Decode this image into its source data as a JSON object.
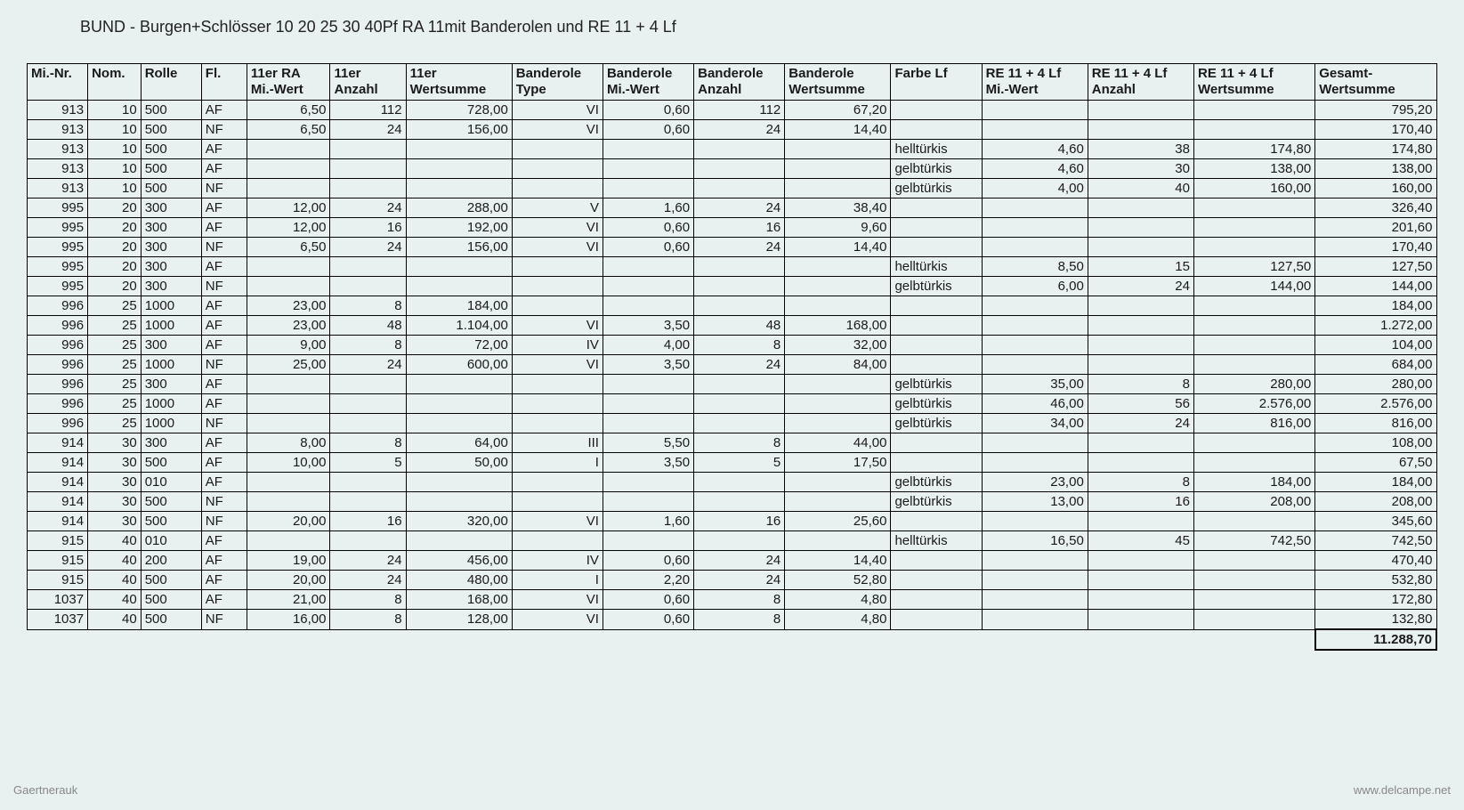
{
  "title": "BUND - Burgen+Schlösser 10 20 25 30 40Pf  RA 11mit Banderolen und RE 11 + 4 Lf",
  "columns": [
    "Mi.-Nr.",
    "Nom.",
    "Rolle",
    "Fl.",
    "11er RA\nMi.-Wert",
    "11er\nAnzahl",
    "11er\nWertsumme",
    "Banderole\nType",
    "Banderole\nMi.-Wert",
    "Banderole\nAnzahl",
    "Banderole\nWertsumme",
    "Farbe Lf",
    "RE 11 + 4 Lf\nMi.-Wert",
    "RE 11 + 4 Lf\nAnzahl",
    "RE 11 + 4 Lf\nWertsumme",
    "Gesamt-\nWertsumme"
  ],
  "column_align": [
    "right",
    "right",
    "left",
    "left",
    "right",
    "right",
    "right",
    "right",
    "right",
    "right",
    "right",
    "left",
    "right",
    "right",
    "right",
    "right"
  ],
  "column_widths_pct": [
    4,
    3.5,
    4,
    3,
    5.5,
    5,
    7,
    6,
    6,
    6,
    7,
    6,
    7,
    7,
    8,
    8
  ],
  "rows": [
    [
      "913",
      "10",
      "500",
      "AF",
      "6,50",
      "112",
      "728,00",
      "VI",
      "0,60",
      "112",
      "67,20",
      "",
      "",
      "",
      "",
      "795,20"
    ],
    [
      "913",
      "10",
      "500",
      "NF",
      "6,50",
      "24",
      "156,00",
      "VI",
      "0,60",
      "24",
      "14,40",
      "",
      "",
      "",
      "",
      "170,40"
    ],
    [
      "913",
      "10",
      "500",
      "AF",
      "",
      "",
      "",
      "",
      "",
      "",
      "",
      "helltürkis",
      "4,60",
      "38",
      "174,80",
      "174,80"
    ],
    [
      "913",
      "10",
      "500",
      "AF",
      "",
      "",
      "",
      "",
      "",
      "",
      "",
      "gelbtürkis",
      "4,60",
      "30",
      "138,00",
      "138,00"
    ],
    [
      "913",
      "10",
      "500",
      "NF",
      "",
      "",
      "",
      "",
      "",
      "",
      "",
      "gelbtürkis",
      "4,00",
      "40",
      "160,00",
      "160,00"
    ],
    [
      "995",
      "20",
      "300",
      "AF",
      "12,00",
      "24",
      "288,00",
      "V",
      "1,60",
      "24",
      "38,40",
      "",
      "",
      "",
      "",
      "326,40"
    ],
    [
      "995",
      "20",
      "300",
      "AF",
      "12,00",
      "16",
      "192,00",
      "VI",
      "0,60",
      "16",
      "9,60",
      "",
      "",
      "",
      "",
      "201,60"
    ],
    [
      "995",
      "20",
      "300",
      "NF",
      "6,50",
      "24",
      "156,00",
      "VI",
      "0,60",
      "24",
      "14,40",
      "",
      "",
      "",
      "",
      "170,40"
    ],
    [
      "995",
      "20",
      "300",
      "AF",
      "",
      "",
      "",
      "",
      "",
      "",
      "",
      "helltürkis",
      "8,50",
      "15",
      "127,50",
      "127,50"
    ],
    [
      "995",
      "20",
      "300",
      "NF",
      "",
      "",
      "",
      "",
      "",
      "",
      "",
      "gelbtürkis",
      "6,00",
      "24",
      "144,00",
      "144,00"
    ],
    [
      "996",
      "25",
      "1000",
      "AF",
      "23,00",
      "8",
      "184,00",
      "",
      "",
      "",
      "",
      "",
      "",
      "",
      "",
      "184,00"
    ],
    [
      "996",
      "25",
      "1000",
      "AF",
      "23,00",
      "48",
      "1.104,00",
      "VI",
      "3,50",
      "48",
      "168,00",
      "",
      "",
      "",
      "",
      "1.272,00"
    ],
    [
      "996",
      "25",
      "300",
      "AF",
      "9,00",
      "8",
      "72,00",
      "IV",
      "4,00",
      "8",
      "32,00",
      "",
      "",
      "",
      "",
      "104,00"
    ],
    [
      "996",
      "25",
      "1000",
      "NF",
      "25,00",
      "24",
      "600,00",
      "VI",
      "3,50",
      "24",
      "84,00",
      "",
      "",
      "",
      "",
      "684,00"
    ],
    [
      "996",
      "25",
      "300",
      "AF",
      "",
      "",
      "",
      "",
      "",
      "",
      "",
      "gelbtürkis",
      "35,00",
      "8",
      "280,00",
      "280,00"
    ],
    [
      "996",
      "25",
      "1000",
      "AF",
      "",
      "",
      "",
      "",
      "",
      "",
      "",
      "gelbtürkis",
      "46,00",
      "56",
      "2.576,00",
      "2.576,00"
    ],
    [
      "996",
      "25",
      "1000",
      "NF",
      "",
      "",
      "",
      "",
      "",
      "",
      "",
      "gelbtürkis",
      "34,00",
      "24",
      "816,00",
      "816,00"
    ],
    [
      "914",
      "30",
      "300",
      "AF",
      "8,00",
      "8",
      "64,00",
      "III",
      "5,50",
      "8",
      "44,00",
      "",
      "",
      "",
      "",
      "108,00"
    ],
    [
      "914",
      "30",
      "500",
      "AF",
      "10,00",
      "5",
      "50,00",
      "I",
      "3,50",
      "5",
      "17,50",
      "",
      "",
      "",
      "",
      "67,50"
    ],
    [
      "914",
      "30",
      "010",
      "AF",
      "",
      "",
      "",
      "",
      "",
      "",
      "",
      "gelbtürkis",
      "23,00",
      "8",
      "184,00",
      "184,00"
    ],
    [
      "914",
      "30",
      "500",
      "NF",
      "",
      "",
      "",
      "",
      "",
      "",
      "",
      "gelbtürkis",
      "13,00",
      "16",
      "208,00",
      "208,00"
    ],
    [
      "914",
      "30",
      "500",
      "NF",
      "20,00",
      "16",
      "320,00",
      "VI",
      "1,60",
      "16",
      "25,60",
      "",
      "",
      "",
      "",
      "345,60"
    ],
    [
      "915",
      "40",
      "010",
      "AF",
      "",
      "",
      "",
      "",
      "",
      "",
      "",
      "helltürkis",
      "16,50",
      "45",
      "742,50",
      "742,50"
    ],
    [
      "915",
      "40",
      "200",
      "AF",
      "19,00",
      "24",
      "456,00",
      "IV",
      "0,60",
      "24",
      "14,40",
      "",
      "",
      "",
      "",
      "470,40"
    ],
    [
      "915",
      "40",
      "500",
      "AF",
      "20,00",
      "24",
      "480,00",
      "I",
      "2,20",
      "24",
      "52,80",
      "",
      "",
      "",
      "",
      "532,80"
    ],
    [
      "1037",
      "40",
      "500",
      "AF",
      "21,00",
      "8",
      "168,00",
      "VI",
      "0,60",
      "8",
      "4,80",
      "",
      "",
      "",
      "",
      "172,80"
    ],
    [
      "1037",
      "40",
      "500",
      "NF",
      "16,00",
      "8",
      "128,00",
      "VI",
      "0,60",
      "8",
      "4,80",
      "",
      "",
      "",
      "",
      "132,80"
    ]
  ],
  "total": "11.288,70",
  "watermarks": {
    "left": "Gaertnerauk",
    "right": "www.delcampe.net"
  },
  "styling": {
    "background_color": "#e8f0f0",
    "border_color": "#000000",
    "text_color": "#1a1a1a",
    "title_fontsize": 18,
    "cell_fontsize": 15,
    "font_family": "Arial, sans-serif"
  }
}
